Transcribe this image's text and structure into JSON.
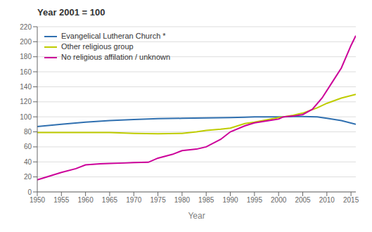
{
  "chart_data": {
    "type": "line",
    "title": "Year 2001 = 100",
    "xlabel": "Year",
    "xlim": [
      1950,
      2016
    ],
    "ylim": [
      0,
      220
    ],
    "xticks": [
      1950,
      1955,
      1960,
      1965,
      1970,
      1975,
      1980,
      1985,
      1990,
      1995,
      2000,
      2005,
      2010,
      2015
    ],
    "yticks": [
      0,
      20,
      40,
      60,
      80,
      100,
      120,
      140,
      160,
      180,
      200,
      220
    ],
    "grid": true,
    "legend": "upper left",
    "series": [
      {
        "name": "Evangelical Lutheran Church *",
        "color": "#3070B0",
        "x": [
          1950,
          1955,
          1960,
          1965,
          1970,
          1975,
          1980,
          1985,
          1990,
          1993,
          1995,
          2000,
          2001,
          2003,
          2005,
          2008,
          2010,
          2013,
          2016
        ],
        "values": [
          87,
          90,
          93,
          95,
          96.5,
          97.5,
          98,
          98.5,
          99,
          99.5,
          100,
          100,
          100,
          100.5,
          100.5,
          100,
          98,
          95,
          90
        ]
      },
      {
        "name": "Other religious group",
        "color": "#BFCC00",
        "x": [
          1950,
          1955,
          1960,
          1965,
          1970,
          1975,
          1980,
          1983,
          1985,
          1988,
          1990,
          1993,
          1995,
          2000,
          2001,
          2003,
          2005,
          2008,
          2010,
          2013,
          2016
        ],
        "values": [
          79,
          79,
          79,
          79,
          78,
          77.5,
          78,
          80,
          82,
          83.5,
          85,
          91,
          93,
          99,
          100,
          102,
          105,
          112,
          118,
          125,
          130
        ]
      },
      {
        "name": "No religious affilation / unknown",
        "color": "#CC0099",
        "x": [
          1950,
          1953,
          1955,
          1958,
          1960,
          1963,
          1965,
          1968,
          1970,
          1973,
          1975,
          1978,
          1980,
          1983,
          1985,
          1988,
          1990,
          1993,
          1995,
          1998,
          2000,
          2001,
          2003,
          2005,
          2007,
          2009,
          2011,
          2013,
          2015,
          2016
        ],
        "values": [
          16,
          22,
          26,
          31,
          36,
          37.5,
          38,
          38.5,
          39,
          39.5,
          45,
          50,
          55,
          57,
          60,
          70,
          80,
          88,
          92,
          95,
          97,
          100,
          101,
          103,
          110,
          125,
          145,
          165,
          195,
          208
        ]
      }
    ]
  }
}
